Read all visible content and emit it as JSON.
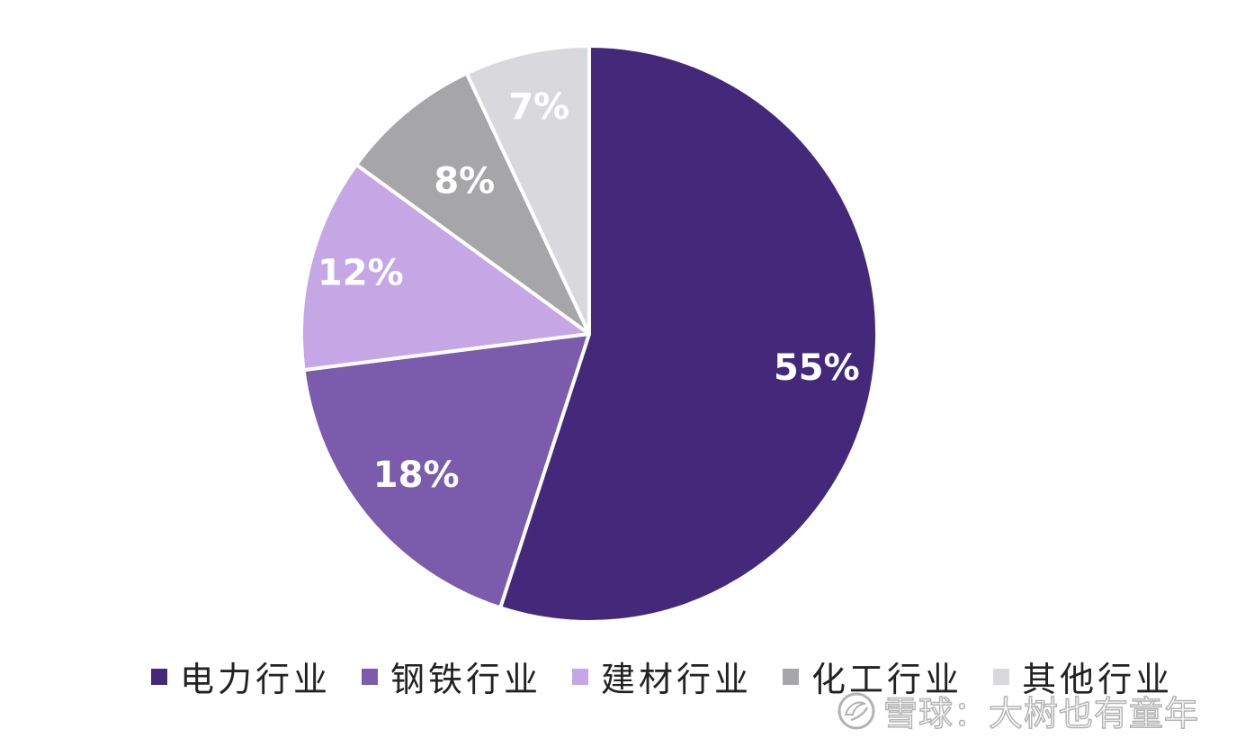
{
  "chart_data": {
    "type": "pie",
    "slices": [
      {
        "name": "电力行业",
        "value": 55,
        "label": "55%",
        "color": "#44297a"
      },
      {
        "name": "钢铁行业",
        "value": 18,
        "label": "18%",
        "color": "#7b5bab"
      },
      {
        "name": "建材行业",
        "value": 12,
        "label": "12%",
        "color": "#c6a7e6"
      },
      {
        "name": "化工行业",
        "value": 8,
        "label": "8%",
        "color": "#a6a6a8"
      },
      {
        "name": "其他行业",
        "value": 7,
        "label": "7%",
        "color": "#d9d9dd"
      }
    ],
    "start_angle_deg": 0,
    "direction": "clockwise",
    "legend_position": "bottom"
  },
  "watermark": {
    "text": "雪球：大树也有童年",
    "icon": "snowball-logo-icon"
  }
}
